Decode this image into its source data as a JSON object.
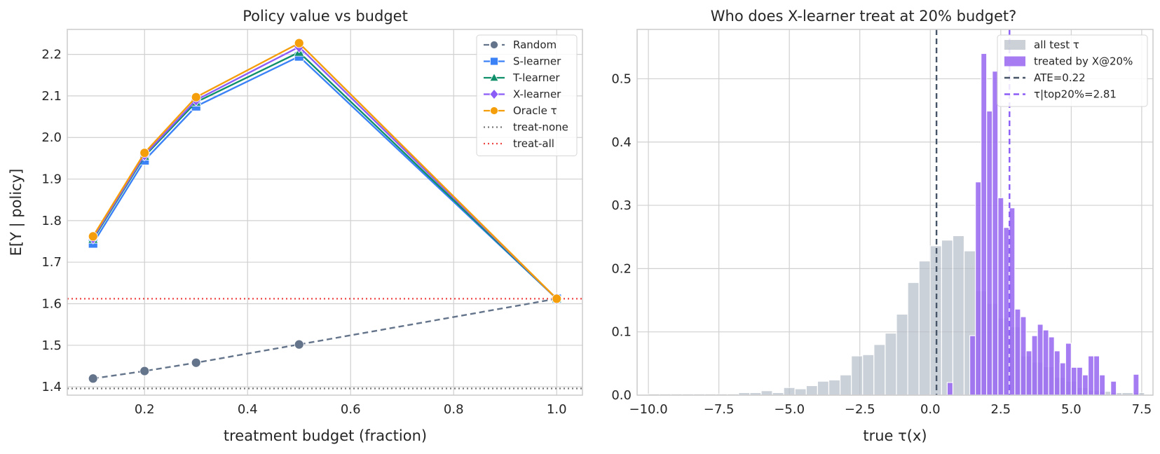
{
  "chart_data": [
    {
      "type": "line",
      "title": "Policy value vs budget",
      "xlabel": "treatment budget (fraction)",
      "ylabel": "E[Y | policy]",
      "xlim": [
        0.05,
        1.05
      ],
      "ylim": [
        1.38,
        2.26
      ],
      "xticks": [
        0.2,
        0.4,
        0.6,
        0.8,
        1.0
      ],
      "xtick_labels": [
        "0.2",
        "0.4",
        "0.6",
        "0.8",
        "1.0"
      ],
      "yticks": [
        1.4,
        1.5,
        1.6,
        1.7,
        1.8,
        1.9,
        2.0,
        2.1,
        2.2
      ],
      "ytick_labels": [
        "1.4",
        "1.5",
        "1.6",
        "1.7",
        "1.8",
        "1.9",
        "2.0",
        "2.1",
        "2.2"
      ],
      "grid": true,
      "legend_position": "top-right",
      "x": [
        0.1,
        0.2,
        0.3,
        0.5,
        1.0
      ],
      "series": [
        {
          "name": "Random",
          "values": [
            1.42,
            1.438,
            1.458,
            1.502,
            1.612
          ],
          "color": "#64748b",
          "marker": "circle",
          "linestyle": "dashed"
        },
        {
          "name": "S-learner",
          "values": [
            1.745,
            1.945,
            2.075,
            2.195,
            1.612
          ],
          "color": "#3b82f6",
          "marker": "square",
          "linestyle": "solid"
        },
        {
          "name": "T-learner",
          "values": [
            1.755,
            1.955,
            2.085,
            2.205,
            1.612
          ],
          "color": "#10906a",
          "marker": "triangle",
          "linestyle": "solid"
        },
        {
          "name": "X-learner",
          "values": [
            1.758,
            1.958,
            2.09,
            2.218,
            1.612
          ],
          "color": "#8b5cf6",
          "marker": "diamond",
          "linestyle": "solid"
        },
        {
          "name": "Oracle τ",
          "values": [
            1.762,
            1.963,
            2.097,
            2.227,
            1.612
          ],
          "color": "#f59e0b",
          "marker": "circle",
          "linestyle": "solid"
        }
      ],
      "hlines": [
        {
          "name": "treat-none",
          "y": 1.396,
          "color": "#777777",
          "linestyle": "dotted"
        },
        {
          "name": "treat-all",
          "y": 1.612,
          "color": "#ef4444",
          "linestyle": "dotted"
        }
      ]
    },
    {
      "type": "bar",
      "title": "Who does X-learner treat at 20% budget?",
      "xlabel": "true τ(x)",
      "ylabel": "",
      "xlim": [
        -10.4,
        7.9
      ],
      "ylim": [
        0,
        0.578
      ],
      "xticks": [
        -10,
        -7.5,
        -5,
        -2.5,
        0,
        2.5,
        5,
        7.5
      ],
      "xtick_labels": [
        "−10.0",
        "−7.5",
        "−5.0",
        "−2.5",
        "0.0",
        "2.5",
        "5.0",
        "7.5"
      ],
      "yticks": [
        0,
        0.1,
        0.2,
        0.3,
        0.4,
        0.5
      ],
      "ytick_labels": [
        "0.0",
        "0.1",
        "0.2",
        "0.3",
        "0.4",
        "0.5"
      ],
      "grid": true,
      "legend_position": "top-right",
      "series": [
        {
          "name": "all test τ",
          "color": "#b6bec8",
          "bin_width": 0.4,
          "x": [
            -10.0,
            -9.6,
            -9.2,
            -8.8,
            -8.4,
            -8.0,
            -7.6,
            -7.2,
            -6.8,
            -6.4,
            -6.0,
            -5.6,
            -5.2,
            -4.8,
            -4.4,
            -4.0,
            -3.6,
            -3.2,
            -2.8,
            -2.4,
            -2.0,
            -1.6,
            -1.2,
            -0.8,
            -0.4,
            0.0,
            0.4,
            0.8,
            1.2,
            1.6,
            2.0,
            2.4,
            2.8,
            3.2,
            3.6,
            4.0,
            4.4,
            4.8,
            5.2,
            5.6,
            6.0,
            6.4,
            6.8,
            7.2
          ],
          "values": [
            0.002,
            0.002,
            0.002,
            0.002,
            0.002,
            0.002,
            0.002,
            0.002,
            0.004,
            0.004,
            0.007,
            0.004,
            0.012,
            0.01,
            0.015,
            0.022,
            0.024,
            0.032,
            0.062,
            0.064,
            0.08,
            0.098,
            0.128,
            0.178,
            0.212,
            0.236,
            0.245,
            0.252,
            0.228,
            0.165,
            0.145,
            0.122,
            0.108,
            0.062,
            0.052,
            0.045,
            0.028,
            0.022,
            0.012,
            0.008,
            0.006,
            0.004,
            0.004,
            0.004
          ]
        },
        {
          "name": "treated by X@20%",
          "color": "#9d6ef2",
          "bin_width": 0.2,
          "x": [
            0.6,
            1.4,
            1.6,
            1.8,
            2.0,
            2.2,
            2.4,
            2.6,
            2.8,
            3.0,
            3.2,
            3.4,
            3.6,
            3.8,
            4.0,
            4.2,
            4.4,
            4.6,
            4.8,
            5.0,
            5.2,
            5.4,
            5.6,
            5.8,
            6.0,
            6.4,
            7.2
          ],
          "values": [
            0.02,
            0.094,
            0.337,
            0.54,
            0.449,
            0.512,
            0.312,
            0.265,
            0.296,
            0.136,
            0.124,
            0.07,
            0.094,
            0.112,
            0.103,
            0.092,
            0.07,
            0.051,
            0.082,
            0.044,
            0.044,
            0.032,
            0.062,
            0.062,
            0.032,
            0.022,
            0.033
          ]
        }
      ],
      "vlines": [
        {
          "name": "ATE=0.22",
          "x": 0.22,
          "color": "#475569",
          "linestyle": "dashed"
        },
        {
          "name": "τ|top20%=2.81",
          "x": 2.81,
          "color": "#8b5cf6",
          "linestyle": "dashed"
        }
      ]
    }
  ]
}
